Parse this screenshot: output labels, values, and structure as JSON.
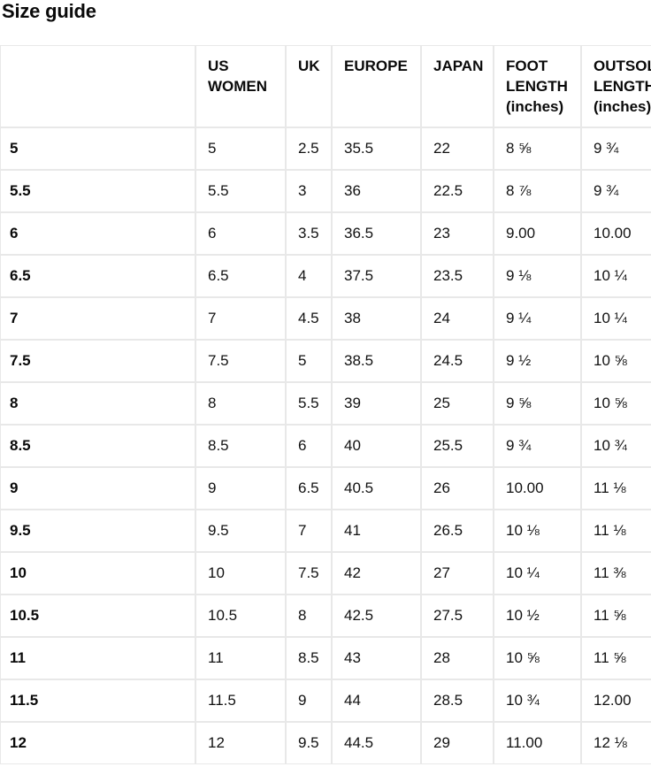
{
  "page": {
    "title": "Size guide"
  },
  "colors": {
    "background": "#ffffff",
    "text": "#111111",
    "border": "#e8e8e8"
  },
  "table": {
    "columns": [
      {
        "key": "size",
        "label": ""
      },
      {
        "key": "us_women",
        "label": "US WOMEN"
      },
      {
        "key": "uk",
        "label": "UK"
      },
      {
        "key": "europe",
        "label": "EUROPE"
      },
      {
        "key": "japan",
        "label": "JAPAN"
      },
      {
        "key": "foot_length",
        "label": "FOOT LENGTH (inches)"
      },
      {
        "key": "outsole_length",
        "label": "OUTSOLE LENGTH (inches)"
      }
    ],
    "rows": [
      {
        "size": "5",
        "us_women": "5",
        "uk": "2.5",
        "europe": "35.5",
        "japan": "22",
        "foot_length": "8 ⅝",
        "outsole_length": "9 ¾"
      },
      {
        "size": "5.5",
        "us_women": "5.5",
        "uk": "3",
        "europe": "36",
        "japan": "22.5",
        "foot_length": "8 ⅞",
        "outsole_length": "9 ¾"
      },
      {
        "size": "6",
        "us_women": "6",
        "uk": "3.5",
        "europe": "36.5",
        "japan": "23",
        "foot_length": "9.00",
        "outsole_length": "10.00"
      },
      {
        "size": "6.5",
        "us_women": "6.5",
        "uk": "4",
        "europe": "37.5",
        "japan": "23.5",
        "foot_length": "9 ⅛",
        "outsole_length": "10 ¼"
      },
      {
        "size": "7",
        "us_women": "7",
        "uk": "4.5",
        "europe": "38",
        "japan": "24",
        "foot_length": "9 ¼",
        "outsole_length": "10 ¼"
      },
      {
        "size": "7.5",
        "us_women": "7.5",
        "uk": "5",
        "europe": "38.5",
        "japan": "24.5",
        "foot_length": "9 ½",
        "outsole_length": "10 ⅝"
      },
      {
        "size": "8",
        "us_women": "8",
        "uk": "5.5",
        "europe": "39",
        "japan": "25",
        "foot_length": "9 ⅝",
        "outsole_length": "10 ⅝"
      },
      {
        "size": "8.5",
        "us_women": "8.5",
        "uk": "6",
        "europe": "40",
        "japan": "25.5",
        "foot_length": "9 ¾",
        "outsole_length": "10 ¾"
      },
      {
        "size": "9",
        "us_women": "9",
        "uk": "6.5",
        "europe": "40.5",
        "japan": "26",
        "foot_length": "10.00",
        "outsole_length": "11 ⅛"
      },
      {
        "size": "9.5",
        "us_women": "9.5",
        "uk": "7",
        "europe": "41",
        "japan": "26.5",
        "foot_length": "10 ⅛",
        "outsole_length": "11 ⅛"
      },
      {
        "size": "10",
        "us_women": "10",
        "uk": "7.5",
        "europe": "42",
        "japan": "27",
        "foot_length": "10 ¼",
        "outsole_length": "11 ⅜"
      },
      {
        "size": "10.5",
        "us_women": "10.5",
        "uk": "8",
        "europe": "42.5",
        "japan": "27.5",
        "foot_length": "10 ½",
        "outsole_length": "11 ⅝"
      },
      {
        "size": "11",
        "us_women": "11",
        "uk": "8.5",
        "europe": "43",
        "japan": "28",
        "foot_length": "10 ⅝",
        "outsole_length": "11 ⅝"
      },
      {
        "size": "11.5",
        "us_women": "11.5",
        "uk": "9",
        "europe": "44",
        "japan": "28.5",
        "foot_length": "10 ¾",
        "outsole_length": "12.00"
      },
      {
        "size": "12",
        "us_women": "12",
        "uk": "9.5",
        "europe": "44.5",
        "japan": "29",
        "foot_length": "11.00",
        "outsole_length": "12 ⅛"
      }
    ]
  }
}
